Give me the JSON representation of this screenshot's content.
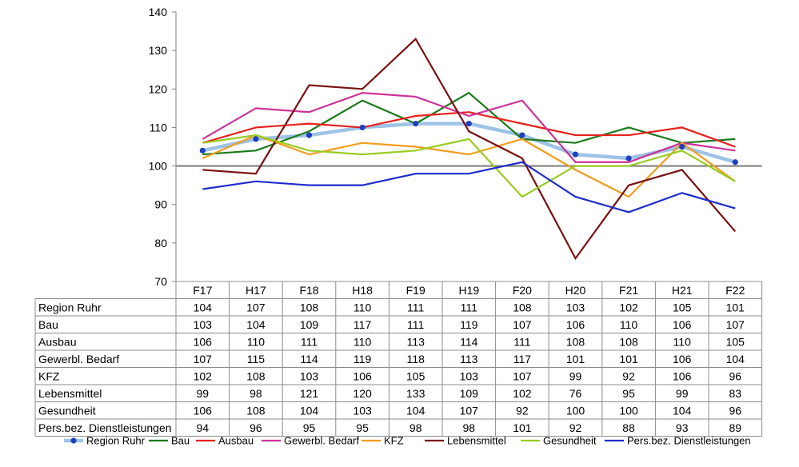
{
  "chart_data": {
    "type": "line",
    "categories": [
      "F17",
      "H17",
      "F18",
      "H18",
      "F19",
      "H19",
      "F20",
      "H20",
      "F21",
      "H21",
      "F22"
    ],
    "ylim": [
      70,
      140
    ],
    "yticks": [
      70,
      80,
      90,
      100,
      110,
      120,
      130,
      140
    ],
    "reference_line": 100,
    "grid": false,
    "legend": "bottom",
    "data_table": true,
    "series": [
      {
        "name": "Region Ruhr",
        "color": "#9dc3e6",
        "marker_color": "#1f3fbf",
        "values": [
          104,
          107,
          108,
          110,
          111,
          111,
          108,
          103,
          102,
          105,
          101
        ]
      },
      {
        "name": "Bau",
        "color": "#1a7a1a",
        "values": [
          103,
          104,
          109,
          117,
          111,
          119,
          107,
          106,
          110,
          106,
          107
        ]
      },
      {
        "name": "Ausbau",
        "color": "#e8201c",
        "values": [
          106,
          110,
          111,
          110,
          113,
          114,
          111,
          108,
          108,
          110,
          105
        ]
      },
      {
        "name": "Gewerbl. Bedarf",
        "color": "#cc3399",
        "values": [
          107,
          115,
          114,
          119,
          118,
          113,
          117,
          101,
          101,
          106,
          104
        ]
      },
      {
        "name": "KFZ",
        "color": "#f39c1e",
        "values": [
          102,
          108,
          103,
          106,
          105,
          103,
          107,
          99,
          92,
          106,
          96
        ]
      },
      {
        "name": "Lebensmittel",
        "color": "#7a1010",
        "values": [
          99,
          98,
          121,
          120,
          133,
          109,
          102,
          76,
          95,
          99,
          83
        ]
      },
      {
        "name": "Gesundheit",
        "color": "#99cc22",
        "values": [
          106,
          108,
          104,
          103,
          104,
          107,
          92,
          100,
          100,
          104,
          96
        ]
      },
      {
        "name": "Pers.bez. Dienstleistungen",
        "color": "#1e2ccc",
        "values": [
          94,
          96,
          95,
          95,
          98,
          98,
          101,
          92,
          88,
          93,
          89
        ]
      }
    ]
  }
}
